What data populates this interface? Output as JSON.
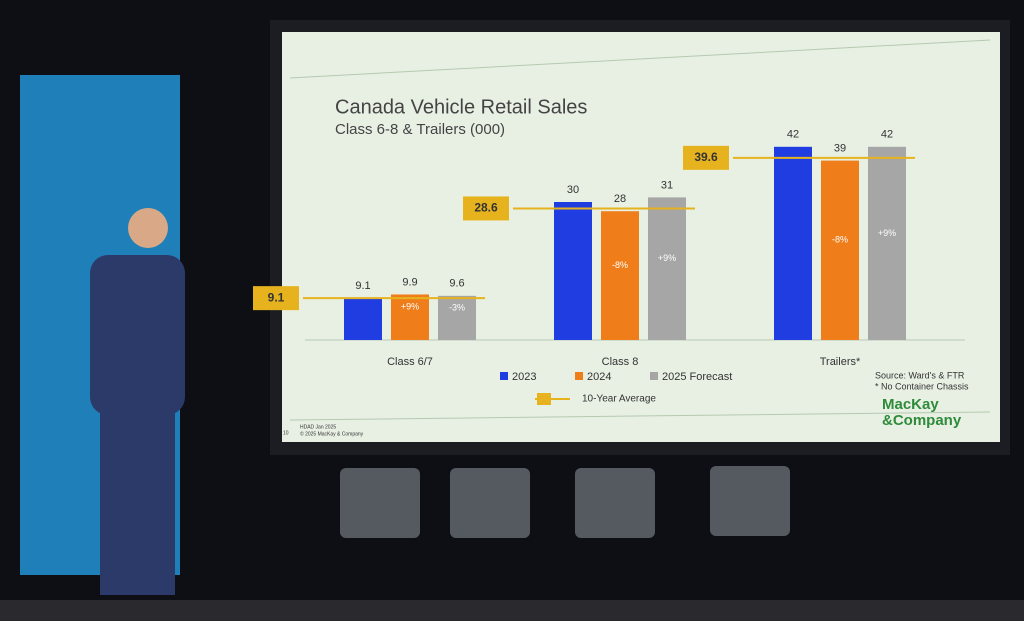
{
  "chart_data": {
    "type": "bar",
    "title": "Canada Vehicle Retail Sales",
    "subtitle": "Class 6-8 & Trailers (000)",
    "categories": [
      "Class 6/7",
      "Class 8",
      "Trailers*"
    ],
    "series": [
      {
        "name": "2023",
        "color": "#1f3de0",
        "values": [
          9.1,
          30,
          42
        ]
      },
      {
        "name": "2024",
        "color": "#ef7d1a",
        "values": [
          9.9,
          28,
          39
        ],
        "change_labels": [
          "+9%",
          "-8%",
          "-8%"
        ]
      },
      {
        "name": "2025 Forecast",
        "color": "#a6a6a6",
        "values": [
          9.6,
          31,
          42
        ],
        "change_labels": [
          "-3%",
          "+9%",
          "+9%"
        ]
      }
    ],
    "average": {
      "name": "10-Year Average",
      "color": "#e6b31e",
      "values": [
        9.1,
        28.6,
        39.6
      ]
    },
    "ylim": [
      0,
      45
    ],
    "source": "Source: Ward's & FTR",
    "note": "* No Container Chassis",
    "footer": [
      "HDAD Jan 2025",
      "© 2025 MacKay & Company"
    ],
    "page_number": "10",
    "logo": [
      "MacKay",
      "&Company"
    ]
  }
}
